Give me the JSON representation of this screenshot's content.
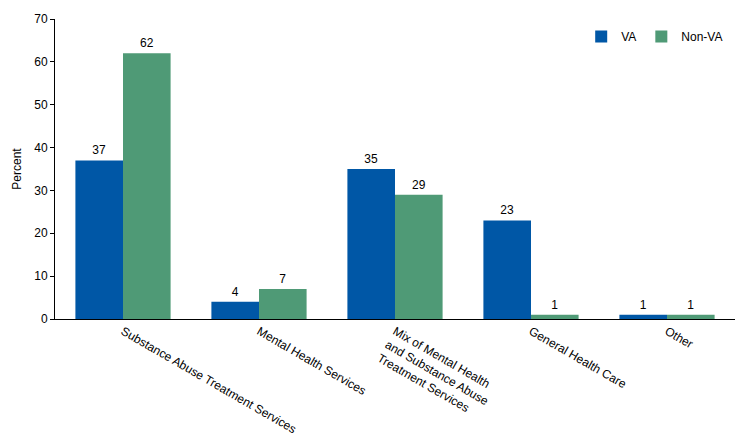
{
  "chart_data": {
    "type": "bar",
    "categories": [
      "Substance Abuse Treatment Services",
      "Mental Health Services",
      "Mix of Mental Health and Substance Abuse Treatment Services",
      "General Health Care",
      "Other"
    ],
    "series": [
      {
        "name": "VA",
        "color": "#0057a6",
        "values": [
          37,
          4,
          35,
          23,
          1
        ]
      },
      {
        "name": "Non-VA",
        "color": "#4f9a76",
        "values": [
          62,
          7,
          29,
          1,
          1
        ]
      }
    ],
    "y_label": "Percent",
    "ylim": [
      0,
      70
    ],
    "yticks": [
      0,
      10,
      20,
      30,
      40,
      50,
      60,
      70
    ],
    "grid": false,
    "legend": "upper right",
    "data_labels": true
  }
}
